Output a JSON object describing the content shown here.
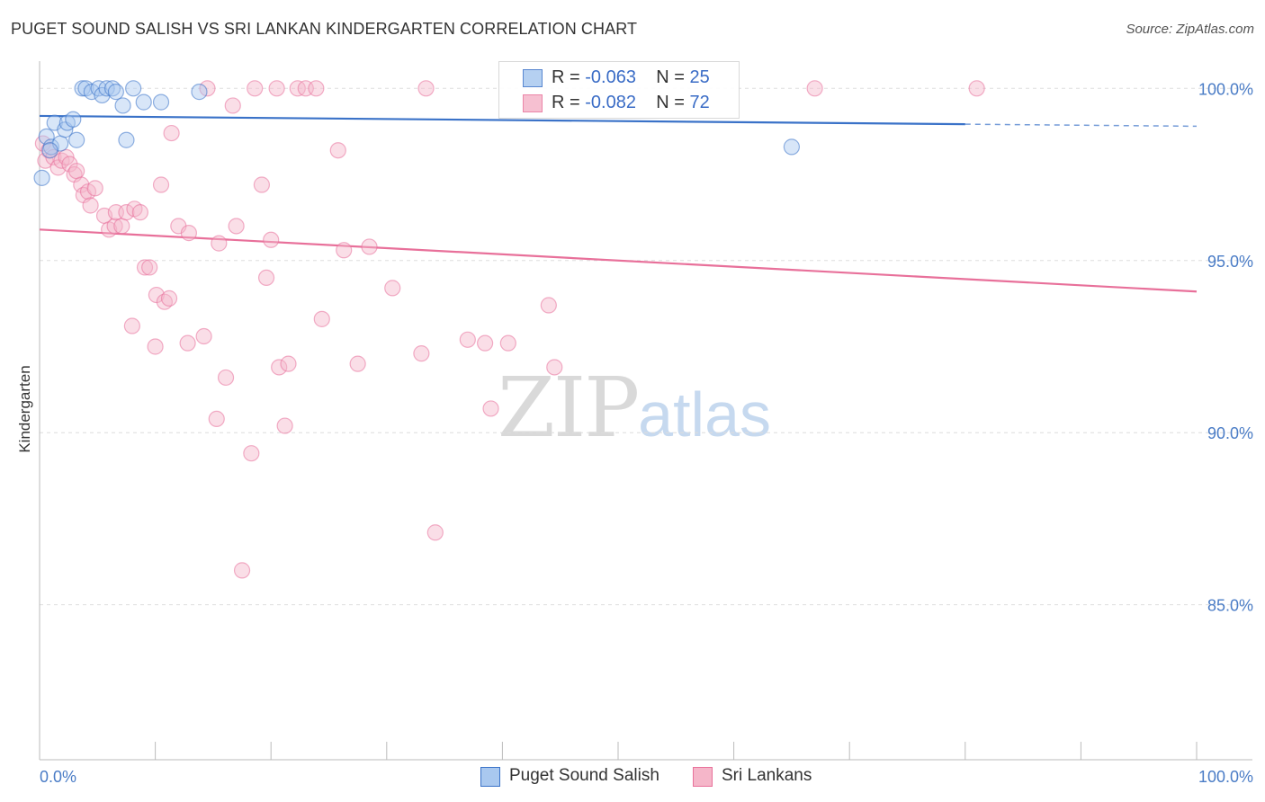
{
  "title": "PUGET SOUND SALISH VS SRI LANKAN KINDERGARTEN CORRELATION CHART",
  "source": "Source: ZipAtlas.com",
  "watermark": {
    "zip": "ZIP",
    "atlas": "atlas"
  },
  "colors": {
    "blue": "#3a72c8",
    "blue_fill": "#a9c8ef",
    "pink": "#e8709a",
    "pink_fill": "#f5b6c9",
    "tick_text": "#4a7cc6",
    "grid": "#dddddd"
  },
  "legend_top": [
    {
      "r_label": "R = ",
      "r_value": "-0.063",
      "n_label": "N = ",
      "n_value": "25"
    },
    {
      "r_label": "R = ",
      "r_value": "-0.082",
      "n_label": "N = ",
      "n_value": "72"
    }
  ],
  "chart_data": {
    "type": "scatter",
    "title": "PUGET SOUND SALISH VS SRI LANKAN KINDERGARTEN CORRELATION CHART",
    "xlabel": "",
    "ylabel": "Kindergarten",
    "xlim": [
      0,
      100
    ],
    "ylim": [
      80.5,
      101.0
    ],
    "x_tick_labels": [
      "0.0%",
      "100.0%"
    ],
    "y_ticks": [
      85,
      90,
      95,
      100
    ],
    "y_tick_labels": [
      "85.0%",
      "90.0%",
      "95.0%",
      "100.0%"
    ],
    "grid": true,
    "legend": "bottom",
    "series": [
      {
        "name": "Puget Sound Salish",
        "r": -0.063,
        "n": 25,
        "trend": {
          "x0": 0,
          "y0": 99.2,
          "x1": 100,
          "y1": 98.9,
          "solid_until": 80
        },
        "points": [
          [
            0.2,
            97.4
          ],
          [
            0.6,
            98.6
          ],
          [
            1.0,
            98.3
          ],
          [
            1.3,
            99.0
          ],
          [
            1.8,
            98.4
          ],
          [
            2.2,
            98.8
          ],
          [
            2.4,
            99.0
          ],
          [
            2.9,
            99.1
          ],
          [
            3.2,
            98.5
          ],
          [
            3.7,
            100.0
          ],
          [
            4.0,
            100.0
          ],
          [
            4.5,
            99.9
          ],
          [
            5.1,
            100.0
          ],
          [
            5.4,
            99.8
          ],
          [
            5.8,
            100.0
          ],
          [
            6.3,
            100.0
          ],
          [
            6.6,
            99.9
          ],
          [
            7.2,
            99.5
          ],
          [
            8.1,
            100.0
          ],
          [
            9.0,
            99.6
          ],
          [
            10.5,
            99.6
          ],
          [
            13.8,
            99.9
          ],
          [
            7.5,
            98.5
          ],
          [
            65.0,
            98.3
          ],
          [
            0.9,
            98.2
          ]
        ]
      },
      {
        "name": "Sri Lankans",
        "r": -0.082,
        "n": 72,
        "trend": {
          "x0": 0,
          "y0": 95.9,
          "x1": 100,
          "y1": 94.1,
          "solid_until": 100
        },
        "points": [
          [
            0.3,
            98.4
          ],
          [
            0.5,
            97.9
          ],
          [
            0.8,
            98.2
          ],
          [
            1.2,
            98.0
          ],
          [
            1.6,
            97.7
          ],
          [
            1.9,
            97.9
          ],
          [
            2.3,
            98.0
          ],
          [
            2.6,
            97.8
          ],
          [
            3.0,
            97.5
          ],
          [
            3.2,
            97.6
          ],
          [
            3.6,
            97.2
          ],
          [
            3.8,
            96.9
          ],
          [
            4.2,
            97.0
          ],
          [
            4.8,
            97.1
          ],
          [
            4.4,
            96.6
          ],
          [
            5.6,
            96.3
          ],
          [
            6.0,
            95.9
          ],
          [
            6.5,
            96.0
          ],
          [
            6.6,
            96.4
          ],
          [
            7.1,
            96.0
          ],
          [
            7.5,
            96.4
          ],
          [
            8.2,
            96.5
          ],
          [
            8.7,
            96.4
          ],
          [
            9.1,
            94.8
          ],
          [
            9.5,
            94.8
          ],
          [
            10.1,
            94.0
          ],
          [
            10.8,
            93.8
          ],
          [
            11.2,
            93.9
          ],
          [
            8.0,
            93.1
          ],
          [
            10.0,
            92.5
          ],
          [
            12.0,
            96.0
          ],
          [
            12.9,
            95.8
          ],
          [
            12.8,
            92.6
          ],
          [
            14.2,
            92.8
          ],
          [
            15.5,
            95.5
          ],
          [
            16.1,
            91.6
          ],
          [
            17.0,
            96.0
          ],
          [
            15.3,
            90.4
          ],
          [
            18.3,
            89.4
          ],
          [
            17.5,
            86.0
          ],
          [
            19.2,
            97.2
          ],
          [
            19.6,
            94.5
          ],
          [
            20.0,
            95.6
          ],
          [
            20.7,
            91.9
          ],
          [
            21.5,
            92.0
          ],
          [
            21.2,
            90.2
          ],
          [
            24.4,
            93.3
          ],
          [
            26.3,
            95.3
          ],
          [
            27.5,
            92.0
          ],
          [
            28.5,
            95.4
          ],
          [
            30.5,
            94.2
          ],
          [
            33.0,
            92.3
          ],
          [
            34.2,
            87.1
          ],
          [
            37.0,
            92.7
          ],
          [
            38.5,
            92.6
          ],
          [
            39.0,
            90.7
          ],
          [
            40.5,
            92.6
          ],
          [
            44.0,
            93.7
          ],
          [
            44.5,
            91.9
          ],
          [
            11.4,
            98.7
          ],
          [
            10.5,
            97.2
          ],
          [
            16.7,
            99.5
          ],
          [
            25.8,
            98.2
          ],
          [
            14.5,
            100.0
          ],
          [
            18.6,
            100.0
          ],
          [
            20.5,
            100.0
          ],
          [
            22.3,
            100.0
          ],
          [
            23.0,
            100.0
          ],
          [
            23.9,
            100.0
          ],
          [
            33.4,
            100.0
          ],
          [
            67.0,
            100.0
          ],
          [
            81.0,
            100.0
          ]
        ]
      }
    ]
  },
  "legend_bottom": [
    {
      "label": "Puget Sound Salish"
    },
    {
      "label": "Sri Lankans"
    }
  ]
}
